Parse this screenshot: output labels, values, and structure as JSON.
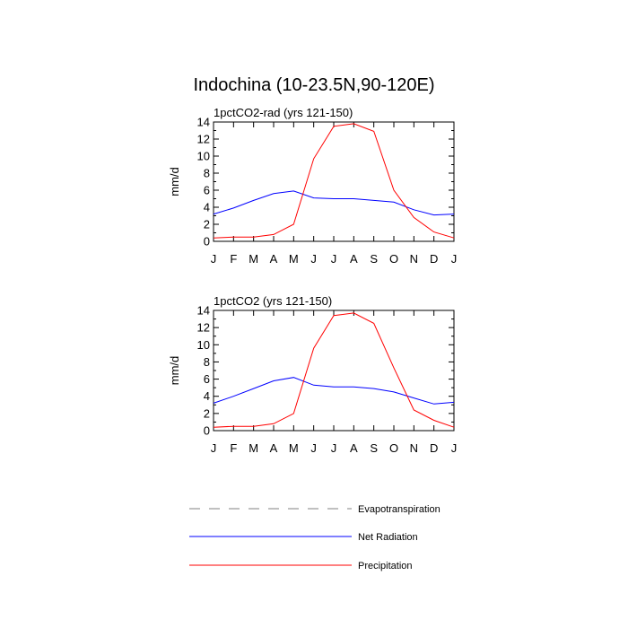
{
  "title": "Indochina (10-23.5N,90-120E)",
  "chart_data": [
    {
      "type": "line",
      "title": "1pctCO2-rad (yrs 121-150)",
      "ylabel": "mm/d",
      "xlabel": "",
      "categories": [
        "J",
        "F",
        "M",
        "A",
        "M",
        "J",
        "J",
        "A",
        "S",
        "O",
        "N",
        "D",
        "J"
      ],
      "ylim": [
        0,
        14
      ],
      "yticks": [
        "0",
        "2",
        "4",
        "6",
        "8",
        "10",
        "12",
        "14"
      ],
      "series": [
        {
          "name": "Net Radiation",
          "color": "#0000ff",
          "values": [
            3.2,
            3.9,
            4.8,
            5.6,
            5.9,
            5.1,
            5.0,
            5.0,
            4.8,
            4.6,
            3.7,
            3.1,
            3.2
          ]
        },
        {
          "name": "Precipitation",
          "color": "#ff0000",
          "values": [
            0.4,
            0.5,
            0.5,
            0.8,
            2.0,
            9.7,
            13.5,
            13.8,
            12.9,
            6.0,
            2.8,
            1.1,
            0.4
          ]
        }
      ]
    },
    {
      "type": "line",
      "title": "1pctCO2 (yrs 121-150)",
      "ylabel": "mm/d",
      "xlabel": "",
      "categories": [
        "J",
        "F",
        "M",
        "A",
        "M",
        "J",
        "J",
        "A",
        "S",
        "O",
        "N",
        "D",
        "J"
      ],
      "ylim": [
        0,
        14
      ],
      "yticks": [
        "0",
        "2",
        "4",
        "6",
        "8",
        "10",
        "12",
        "14"
      ],
      "series": [
        {
          "name": "Net Radiation",
          "color": "#0000ff",
          "values": [
            3.2,
            4.0,
            4.9,
            5.8,
            6.2,
            5.3,
            5.1,
            5.1,
            4.9,
            4.5,
            3.8,
            3.1,
            3.3
          ]
        },
        {
          "name": "Precipitation",
          "color": "#ff0000",
          "values": [
            0.4,
            0.5,
            0.5,
            0.8,
            2.0,
            9.6,
            13.4,
            13.7,
            12.5,
            7.3,
            2.4,
            1.2,
            0.4
          ]
        }
      ]
    }
  ],
  "legend": [
    {
      "label": "Evapotranspiration",
      "color": "#808080",
      "style": "dashed"
    },
    {
      "label": "Net Radiation",
      "color": "#0000ff",
      "style": "solid"
    },
    {
      "label": "Precipitation",
      "color": "#ff0000",
      "style": "solid"
    }
  ]
}
